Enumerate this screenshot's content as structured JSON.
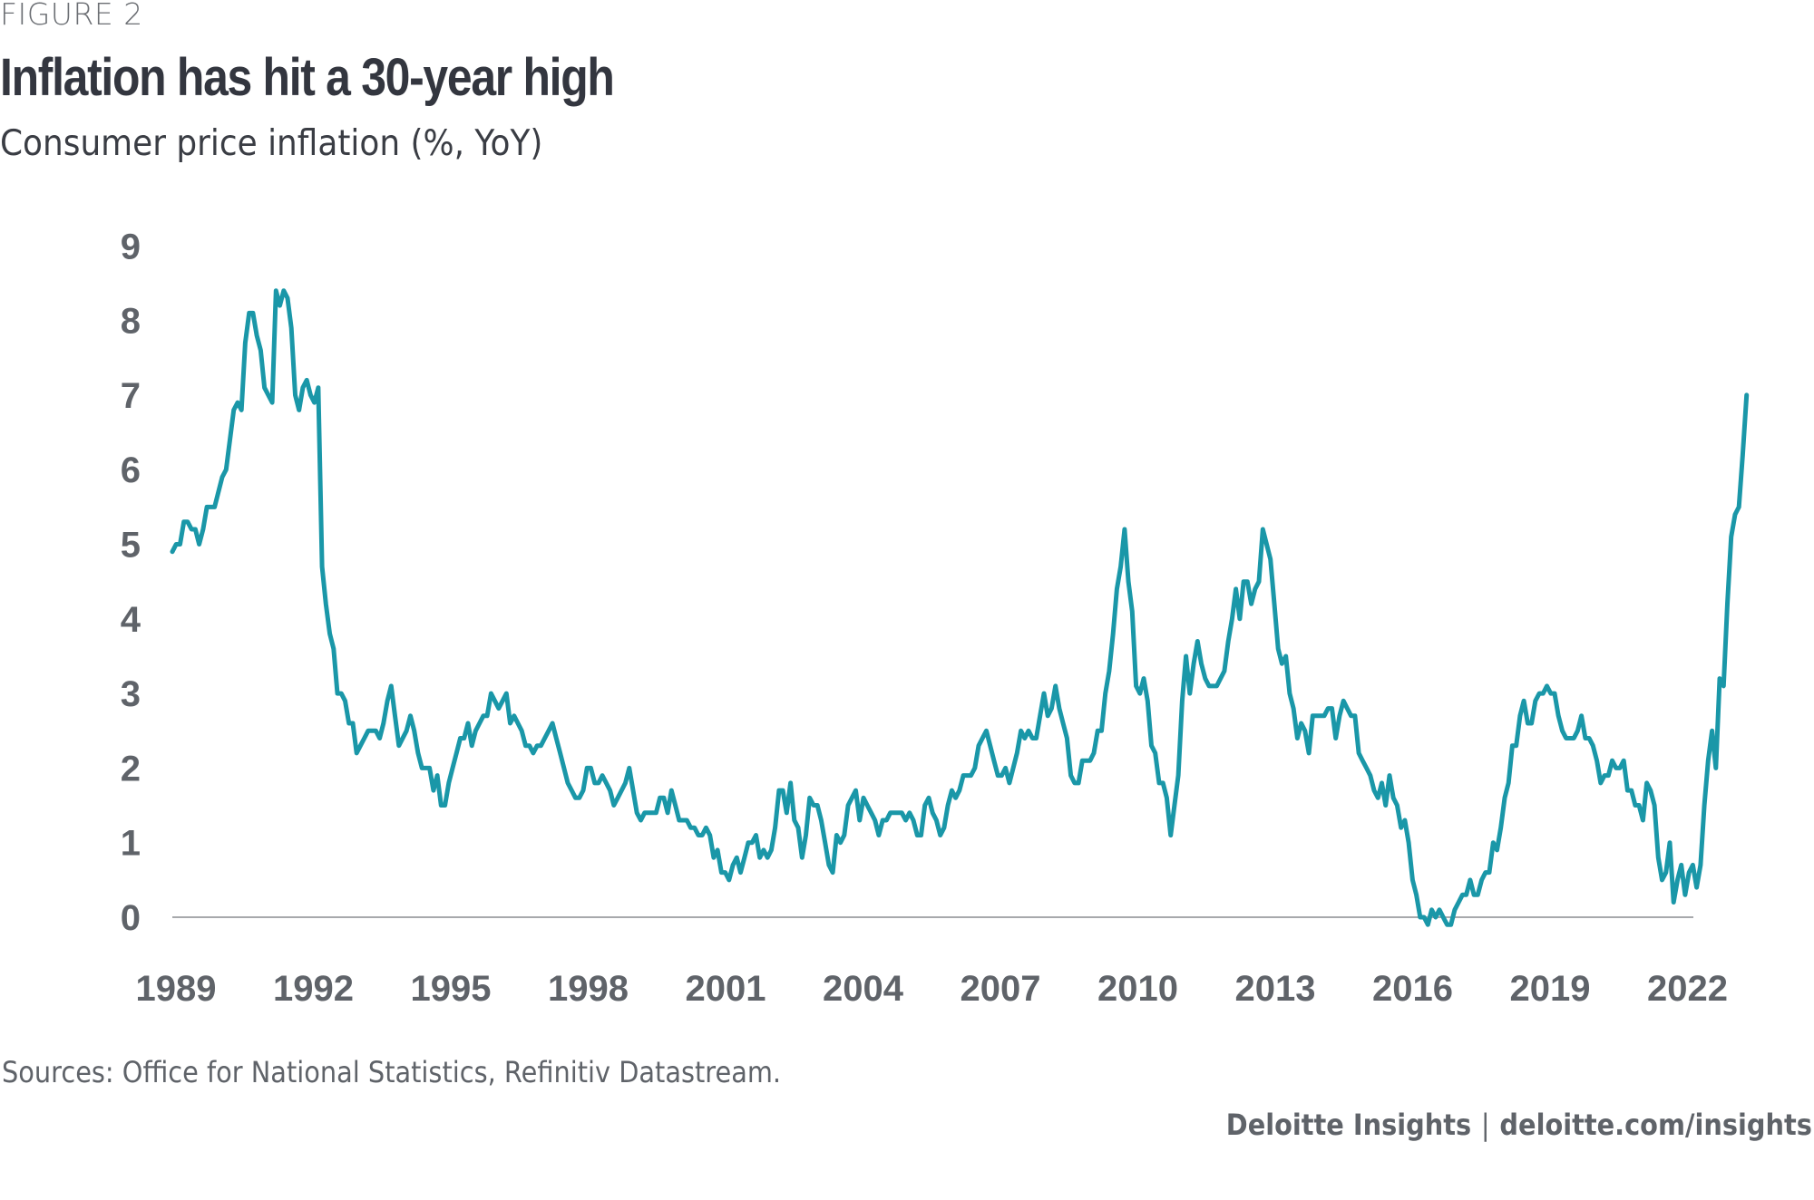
{
  "figure_label": "FIGURE 2",
  "footer": {
    "sources": "Sources: Office for National Statistics, Refinitiv Datastream.",
    "brand": "Deloitte Insights",
    "separator": "|",
    "url": "deloitte.com/insights"
  },
  "colors": {
    "line": "#1a97a8",
    "axis": "#a7a9ac",
    "tick_text": "#5f6369",
    "title": "#33363f"
  },
  "chart_data": {
    "type": "line",
    "title": "Inflation has hit a 30-year high",
    "subtitle": "Consumer price inflation (%, YoY)",
    "xlabel": "",
    "ylabel": "",
    "x_start": "1989-01",
    "x_frequency": "monthly",
    "xticks": [
      "1989",
      "1992",
      "1995",
      "1998",
      "2001",
      "2004",
      "2007",
      "2010",
      "2013",
      "2016",
      "2019",
      "2022"
    ],
    "yticks": [
      "0",
      "1",
      "2",
      "3",
      "4",
      "5",
      "6",
      "7",
      "8",
      "9"
    ],
    "ylim": [
      0,
      9
    ],
    "grid": false,
    "legend": "none",
    "series": [
      {
        "name": "Consumer price inflation (%, YoY)",
        "values": [
          4.9,
          5.0,
          5.0,
          5.3,
          5.3,
          5.2,
          5.2,
          5.0,
          5.2,
          5.5,
          5.5,
          5.5,
          5.7,
          5.9,
          6.0,
          6.4,
          6.8,
          6.9,
          6.8,
          7.7,
          8.1,
          8.1,
          7.8,
          7.6,
          7.1,
          7.0,
          6.9,
          8.4,
          8.2,
          8.4,
          8.3,
          7.9,
          7.0,
          6.8,
          7.1,
          7.2,
          7.0,
          6.9,
          7.1,
          4.7,
          4.2,
          3.8,
          3.6,
          3.0,
          3.0,
          2.9,
          2.6,
          2.6,
          2.2,
          2.3,
          2.4,
          2.5,
          2.5,
          2.5,
          2.4,
          2.6,
          2.9,
          3.1,
          2.7,
          2.3,
          2.4,
          2.5,
          2.7,
          2.5,
          2.2,
          2.0,
          2.0,
          2.0,
          1.7,
          1.9,
          1.5,
          1.5,
          1.8,
          2.0,
          2.2,
          2.4,
          2.4,
          2.6,
          2.3,
          2.5,
          2.6,
          2.7,
          2.7,
          3.0,
          2.9,
          2.8,
          2.9,
          3.0,
          2.6,
          2.7,
          2.6,
          2.5,
          2.3,
          2.3,
          2.2,
          2.3,
          2.3,
          2.4,
          2.5,
          2.6,
          2.4,
          2.2,
          2.0,
          1.8,
          1.7,
          1.6,
          1.6,
          1.7,
          2.0,
          2.0,
          1.8,
          1.8,
          1.9,
          1.8,
          1.7,
          1.5,
          1.6,
          1.7,
          1.8,
          2.0,
          1.7,
          1.4,
          1.3,
          1.4,
          1.4,
          1.4,
          1.4,
          1.6,
          1.6,
          1.4,
          1.7,
          1.5,
          1.3,
          1.3,
          1.3,
          1.2,
          1.2,
          1.1,
          1.1,
          1.2,
          1.1,
          0.8,
          0.9,
          0.6,
          0.6,
          0.5,
          0.7,
          0.8,
          0.6,
          0.8,
          1.0,
          1.0,
          1.1,
          0.8,
          0.9,
          0.8,
          0.9,
          1.2,
          1.7,
          1.7,
          1.4,
          1.8,
          1.3,
          1.2,
          0.8,
          1.1,
          1.6,
          1.5,
          1.5,
          1.3,
          1.0,
          0.7,
          0.6,
          1.1,
          1.0,
          1.1,
          1.5,
          1.6,
          1.7,
          1.3,
          1.6,
          1.5,
          1.4,
          1.3,
          1.1,
          1.3,
          1.3,
          1.4,
          1.4,
          1.4,
          1.4,
          1.3,
          1.4,
          1.3,
          1.1,
          1.1,
          1.5,
          1.6,
          1.4,
          1.3,
          1.1,
          1.2,
          1.5,
          1.7,
          1.6,
          1.7,
          1.9,
          1.9,
          1.9,
          2.0,
          2.3,
          2.4,
          2.5,
          2.3,
          2.1,
          1.9,
          1.9,
          2.0,
          1.8,
          2.0,
          2.2,
          2.5,
          2.4,
          2.5,
          2.4,
          2.4,
          2.7,
          3.0,
          2.7,
          2.8,
          3.1,
          2.8,
          2.6,
          2.4,
          1.9,
          1.8,
          1.8,
          2.1,
          2.1,
          2.1,
          2.2,
          2.5,
          2.5,
          3.0,
          3.3,
          3.8,
          4.4,
          4.7,
          5.2,
          4.5,
          4.1,
          3.1,
          3.0,
          3.2,
          2.9,
          2.3,
          2.2,
          1.8,
          1.8,
          1.6,
          1.1,
          1.5,
          1.9,
          2.9,
          3.5,
          3.0,
          3.4,
          3.7,
          3.4,
          3.2,
          3.1,
          3.1,
          3.1,
          3.2,
          3.3,
          3.7,
          4.0,
          4.4,
          4.0,
          4.5,
          4.5,
          4.2,
          4.4,
          4.5,
          5.2,
          5.0,
          4.8,
          4.2,
          3.6,
          3.4,
          3.5,
          3.0,
          2.8,
          2.4,
          2.6,
          2.5,
          2.2,
          2.7,
          2.7,
          2.7,
          2.7,
          2.8,
          2.8,
          2.4,
          2.7,
          2.9,
          2.8,
          2.7,
          2.7,
          2.2,
          2.1,
          2.0,
          1.9,
          1.7,
          1.6,
          1.8,
          1.5,
          1.9,
          1.6,
          1.5,
          1.2,
          1.3,
          1.0,
          0.5,
          0.3,
          0.0,
          0.0,
          -0.1,
          0.1,
          0.0,
          0.1,
          0.0,
          -0.1,
          -0.1,
          0.1,
          0.2,
          0.3,
          0.3,
          0.5,
          0.3,
          0.3,
          0.5,
          0.6,
          0.6,
          1.0,
          0.9,
          1.2,
          1.6,
          1.8,
          2.3,
          2.3,
          2.7,
          2.9,
          2.6,
          2.6,
          2.9,
          3.0,
          3.0,
          3.1,
          3.0,
          3.0,
          2.7,
          2.5,
          2.4,
          2.4,
          2.4,
          2.5,
          2.7,
          2.4,
          2.4,
          2.3,
          2.1,
          1.8,
          1.9,
          1.9,
          2.1,
          2.0,
          2.0,
          2.1,
          1.7,
          1.7,
          1.5,
          1.5,
          1.3,
          1.8,
          1.7,
          1.5,
          0.8,
          0.5,
          0.6,
          1.0,
          0.2,
          0.5,
          0.7,
          0.3,
          0.6,
          0.7,
          0.4,
          0.7,
          1.5,
          2.1,
          2.5,
          2.0,
          3.2,
          3.1,
          4.2,
          5.1,
          5.4,
          5.5,
          6.2,
          7.0
        ]
      }
    ]
  }
}
